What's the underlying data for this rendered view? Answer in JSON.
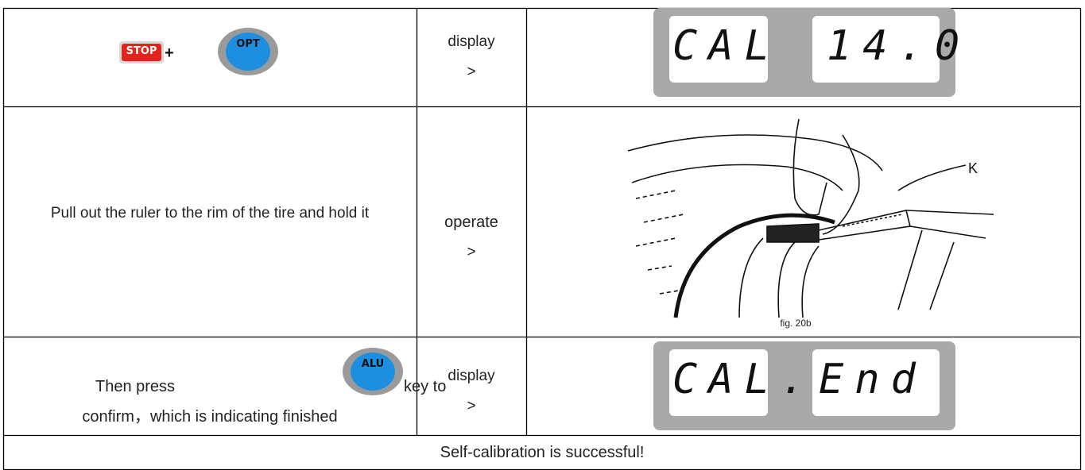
{
  "table": {
    "rows": [
      {
        "keys": [
          "STOP",
          "OPT"
        ],
        "joiner": "+",
        "action": "display",
        "arrow": ">",
        "display": [
          "CAL",
          "14.0"
        ]
      },
      {
        "instruction": "Pull out the ruler to the rim of the tire and hold it",
        "action": "operate",
        "arrow": ">",
        "figure": {
          "callout": "K",
          "label": "fig. 20b"
        }
      },
      {
        "instruction_before": "Then press",
        "key": "ALU",
        "instruction_after": "key to",
        "instruction_end": "confirm，which is indicating finished",
        "action": "display",
        "arrow": ">",
        "display": [
          "CAL.",
          "End"
        ]
      }
    ],
    "footer": "Self-calibration is successful!"
  }
}
